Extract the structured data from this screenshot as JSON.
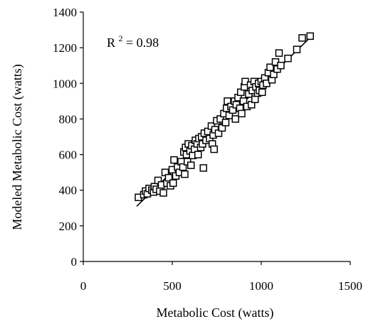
{
  "chart_data": {
    "type": "scatter",
    "title": "",
    "xlabel": "Metabolic Cost (watts)",
    "ylabel": "Modeled Metabolic Cost (watts)",
    "xlim": [
      0,
      1500
    ],
    "ylim": [
      0,
      1400
    ],
    "xticks": [
      "0",
      "500",
      "1000",
      "1500"
    ],
    "yticks": [
      "0",
      "200",
      "400",
      "600",
      "800",
      "1000",
      "1200",
      "1400"
    ],
    "grid": false,
    "annotation": {
      "base": "R",
      "sup": "2",
      "rest": " = 0.98"
    },
    "marker": "open-square",
    "trendline": {
      "x": [
        300,
        1280
      ],
      "y": [
        310,
        1262
      ]
    },
    "points": [
      {
        "x": 310,
        "y": 360
      },
      {
        "x": 340,
        "y": 375
      },
      {
        "x": 350,
        "y": 395
      },
      {
        "x": 360,
        "y": 380
      },
      {
        "x": 370,
        "y": 410
      },
      {
        "x": 385,
        "y": 400
      },
      {
        "x": 395,
        "y": 390
      },
      {
        "x": 400,
        "y": 420
      },
      {
        "x": 410,
        "y": 405
      },
      {
        "x": 420,
        "y": 455
      },
      {
        "x": 430,
        "y": 395
      },
      {
        "x": 440,
        "y": 430
      },
      {
        "x": 450,
        "y": 385
      },
      {
        "x": 460,
        "y": 500
      },
      {
        "x": 470,
        "y": 440
      },
      {
        "x": 480,
        "y": 470
      },
      {
        "x": 490,
        "y": 425
      },
      {
        "x": 500,
        "y": 515
      },
      {
        "x": 505,
        "y": 440
      },
      {
        "x": 510,
        "y": 570
      },
      {
        "x": 520,
        "y": 480
      },
      {
        "x": 530,
        "y": 530
      },
      {
        "x": 540,
        "y": 500
      },
      {
        "x": 550,
        "y": 560
      },
      {
        "x": 560,
        "y": 530
      },
      {
        "x": 565,
        "y": 615
      },
      {
        "x": 570,
        "y": 490
      },
      {
        "x": 575,
        "y": 640
      },
      {
        "x": 580,
        "y": 600
      },
      {
        "x": 585,
        "y": 560
      },
      {
        "x": 590,
        "y": 660
      },
      {
        "x": 600,
        "y": 620
      },
      {
        "x": 605,
        "y": 540
      },
      {
        "x": 610,
        "y": 650
      },
      {
        "x": 615,
        "y": 595
      },
      {
        "x": 625,
        "y": 630
      },
      {
        "x": 630,
        "y": 680
      },
      {
        "x": 640,
        "y": 660
      },
      {
        "x": 645,
        "y": 600
      },
      {
        "x": 650,
        "y": 690
      },
      {
        "x": 660,
        "y": 640
      },
      {
        "x": 665,
        "y": 700
      },
      {
        "x": 670,
        "y": 660
      },
      {
        "x": 675,
        "y": 525
      },
      {
        "x": 680,
        "y": 720
      },
      {
        "x": 690,
        "y": 680
      },
      {
        "x": 700,
        "y": 730
      },
      {
        "x": 710,
        "y": 690
      },
      {
        "x": 720,
        "y": 760
      },
      {
        "x": 725,
        "y": 660
      },
      {
        "x": 730,
        "y": 710
      },
      {
        "x": 735,
        "y": 630
      },
      {
        "x": 740,
        "y": 740
      },
      {
        "x": 750,
        "y": 790
      },
      {
        "x": 760,
        "y": 720
      },
      {
        "x": 770,
        "y": 800
      },
      {
        "x": 780,
        "y": 750
      },
      {
        "x": 790,
        "y": 830
      },
      {
        "x": 800,
        "y": 780
      },
      {
        "x": 805,
        "y": 860
      },
      {
        "x": 810,
        "y": 900
      },
      {
        "x": 820,
        "y": 820
      },
      {
        "x": 830,
        "y": 870
      },
      {
        "x": 840,
        "y": 850
      },
      {
        "x": 850,
        "y": 900
      },
      {
        "x": 855,
        "y": 800
      },
      {
        "x": 860,
        "y": 880
      },
      {
        "x": 870,
        "y": 920
      },
      {
        "x": 880,
        "y": 860
      },
      {
        "x": 885,
        "y": 950
      },
      {
        "x": 890,
        "y": 830
      },
      {
        "x": 900,
        "y": 900
      },
      {
        "x": 905,
        "y": 980
      },
      {
        "x": 910,
        "y": 1010
      },
      {
        "x": 920,
        "y": 870
      },
      {
        "x": 930,
        "y": 940
      },
      {
        "x": 940,
        "y": 990
      },
      {
        "x": 945,
        "y": 880
      },
      {
        "x": 950,
        "y": 960
      },
      {
        "x": 960,
        "y": 1010
      },
      {
        "x": 965,
        "y": 910
      },
      {
        "x": 970,
        "y": 980
      },
      {
        "x": 980,
        "y": 945
      },
      {
        "x": 985,
        "y": 1000
      },
      {
        "x": 990,
        "y": 960
      },
      {
        "x": 1000,
        "y": 1010
      },
      {
        "x": 1005,
        "y": 950
      },
      {
        "x": 1010,
        "y": 990
      },
      {
        "x": 1020,
        "y": 1030
      },
      {
        "x": 1030,
        "y": 1000
      },
      {
        "x": 1040,
        "y": 1060
      },
      {
        "x": 1050,
        "y": 1090
      },
      {
        "x": 1060,
        "y": 1020
      },
      {
        "x": 1070,
        "y": 1050
      },
      {
        "x": 1080,
        "y": 1120
      },
      {
        "x": 1090,
        "y": 1080
      },
      {
        "x": 1100,
        "y": 1170
      },
      {
        "x": 1110,
        "y": 1100
      },
      {
        "x": 1150,
        "y": 1140
      },
      {
        "x": 1200,
        "y": 1190
      },
      {
        "x": 1230,
        "y": 1255
      },
      {
        "x": 1275,
        "y": 1265
      }
    ]
  }
}
